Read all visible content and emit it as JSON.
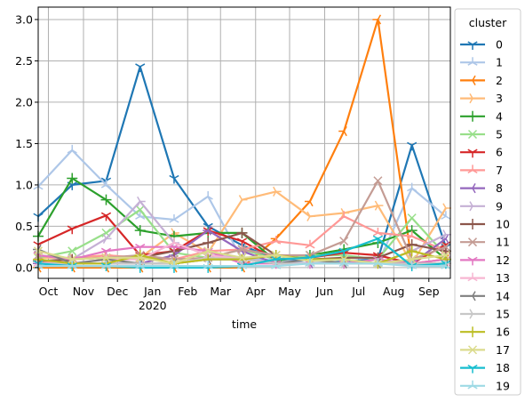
{
  "chart_data": {
    "type": "line",
    "xlabel": "time",
    "x_year_label": "2020",
    "x_tick_labels": [
      "Oct",
      "Nov",
      "Dec",
      "Jan",
      "Feb",
      "Mar",
      "Apr",
      "May",
      "Jun",
      "Jul",
      "Aug",
      "Sep"
    ],
    "x_tick_dates": [
      "2019-10-01",
      "2019-11-01",
      "2019-12-01",
      "2020-01-01",
      "2020-02-01",
      "2020-03-01",
      "2020-04-01",
      "2020-05-01",
      "2020-06-01",
      "2020-07-01",
      "2020-08-01",
      "2020-09-01"
    ],
    "xlim": [
      "2019-09-22",
      "2020-09-20"
    ],
    "ylim": [
      -0.13,
      3.15
    ],
    "y_ticks": [
      "0.0",
      "0.5",
      "1.0",
      "1.5",
      "2.0",
      "2.5",
      "3.0"
    ],
    "grid": true,
    "legend_title": "cluster",
    "legend_position": "outside-right",
    "x": [
      "2019-09-22",
      "2019-10-22",
      "2019-11-21",
      "2019-12-21",
      "2020-01-20",
      "2020-02-19",
      "2020-03-20",
      "2020-04-19",
      "2020-05-19",
      "2020-06-18",
      "2020-07-18",
      "2020-08-17",
      "2020-09-16"
    ],
    "series": [
      {
        "name": "0",
        "color": "#1f77b4",
        "marker": "tri_down",
        "values": [
          0.62,
          1.0,
          1.05,
          2.43,
          1.08,
          0.5,
          0.27,
          0.1,
          0.1,
          0.08,
          0.1,
          1.48,
          0.25
        ]
      },
      {
        "name": "1",
        "color": "#aec7e8",
        "marker": "tri_up",
        "values": [
          0.98,
          1.42,
          1.0,
          0.62,
          0.58,
          0.86,
          0.1,
          0.1,
          0.05,
          0.1,
          0.05,
          0.96,
          0.62
        ]
      },
      {
        "name": "2",
        "color": "#ff7f0e",
        "marker": "tri_left",
        "values": [
          0.0,
          0.0,
          0.0,
          0.0,
          0.0,
          0.0,
          0.0,
          0.35,
          0.8,
          1.65,
          3.0,
          0.05,
          0.1
        ]
      },
      {
        "name": "3",
        "color": "#ffbb78",
        "marker": "tri_right",
        "values": [
          0.12,
          0.12,
          0.15,
          0.12,
          0.42,
          0.18,
          0.82,
          0.92,
          0.62,
          0.66,
          0.75,
          0.05,
          0.72
        ]
      },
      {
        "name": "4",
        "color": "#2ca02c",
        "marker": "plus",
        "values": [
          0.38,
          1.08,
          0.82,
          0.45,
          0.38,
          0.42,
          0.42,
          0.08,
          0.15,
          0.22,
          0.3,
          0.45,
          0.1
        ]
      },
      {
        "name": "5",
        "color": "#98df8a",
        "marker": "x",
        "values": [
          0.12,
          0.2,
          0.42,
          0.7,
          0.18,
          0.12,
          0.22,
          0.1,
          0.15,
          0.15,
          0.1,
          0.6,
          0.15
        ]
      },
      {
        "name": "6",
        "color": "#d62728",
        "marker": "tri_down",
        "values": [
          0.28,
          0.47,
          0.63,
          0.15,
          0.2,
          0.45,
          0.32,
          0.1,
          0.12,
          0.18,
          0.15,
          0.05,
          0.28
        ]
      },
      {
        "name": "7",
        "color": "#ff9896",
        "marker": "tri_up",
        "values": [
          0.05,
          0.1,
          0.15,
          0.12,
          0.1,
          0.2,
          0.22,
          0.32,
          0.27,
          0.62,
          0.42,
          0.38,
          0.2
        ]
      },
      {
        "name": "8",
        "color": "#9467bd",
        "marker": "tri_left",
        "values": [
          0.05,
          0.05,
          0.05,
          0.05,
          0.15,
          0.45,
          0.2,
          0.05,
          0.05,
          0.05,
          0.05,
          0.05,
          0.35
        ]
      },
      {
        "name": "9",
        "color": "#c5b0d5",
        "marker": "tri_right",
        "values": [
          0.15,
          0.1,
          0.35,
          0.8,
          0.3,
          0.15,
          0.12,
          0.05,
          0.05,
          0.05,
          0.05,
          0.2,
          0.4
        ]
      },
      {
        "name": "10",
        "color": "#8c564b",
        "marker": "plus",
        "values": [
          0.08,
          0.1,
          0.12,
          0.12,
          0.2,
          0.3,
          0.42,
          0.15,
          0.1,
          0.12,
          0.12,
          0.28,
          0.2
        ]
      },
      {
        "name": "11",
        "color": "#c49c94",
        "marker": "x",
        "values": [
          0.15,
          0.1,
          0.12,
          0.15,
          0.1,
          0.12,
          0.22,
          0.15,
          0.15,
          0.32,
          1.05,
          0.1,
          0.25
        ]
      },
      {
        "name": "12",
        "color": "#e377c2",
        "marker": "tri_down",
        "values": [
          0.15,
          0.1,
          0.2,
          0.25,
          0.25,
          0.2,
          0.05,
          0.05,
          0.05,
          0.05,
          0.1,
          0.05,
          0.1
        ]
      },
      {
        "name": "13",
        "color": "#f7b6d2",
        "marker": "tri_up",
        "values": [
          0.05,
          0.05,
          0.1,
          0.1,
          0.3,
          0.15,
          0.1,
          0.05,
          0.05,
          0.05,
          0.05,
          0.05,
          0.05
        ]
      },
      {
        "name": "14",
        "color": "#7f7f7f",
        "marker": "tri_left",
        "values": [
          0.22,
          0.05,
          0.1,
          0.05,
          0.05,
          0.1,
          0.1,
          0.05,
          0.1,
          0.05,
          0.05,
          0.05,
          0.05
        ]
      },
      {
        "name": "15",
        "color": "#c7c7c7",
        "marker": "tri_right",
        "values": [
          0.05,
          0.05,
          0.05,
          0.05,
          0.05,
          0.12,
          0.1,
          0.05,
          0.05,
          0.05,
          0.05,
          0.05,
          0.05
        ]
      },
      {
        "name": "16",
        "color": "#bcbd22",
        "marker": "plus",
        "values": [
          0.1,
          0.05,
          0.05,
          0.15,
          0.05,
          0.1,
          0.1,
          0.15,
          0.1,
          0.1,
          0.05,
          0.2,
          0.1
        ]
      },
      {
        "name": "17",
        "color": "#dbdb8d",
        "marker": "x",
        "values": [
          0.2,
          0.1,
          0.12,
          0.12,
          0.05,
          0.2,
          0.12,
          0.15,
          0.08,
          0.1,
          0.05,
          0.1,
          0.15
        ]
      },
      {
        "name": "18",
        "color": "#17becf",
        "marker": "tri_down",
        "values": [
          0.05,
          0.02,
          0.02,
          0.0,
          0.0,
          0.0,
          0.02,
          0.1,
          0.12,
          0.2,
          0.35,
          0.02,
          0.05
        ]
      },
      {
        "name": "19",
        "color": "#9edae5",
        "marker": "tri_up",
        "values": [
          0.02,
          0.02,
          0.02,
          0.02,
          0.02,
          0.02,
          0.02,
          0.02,
          0.05,
          0.05,
          0.05,
          0.02,
          0.02
        ]
      }
    ]
  }
}
